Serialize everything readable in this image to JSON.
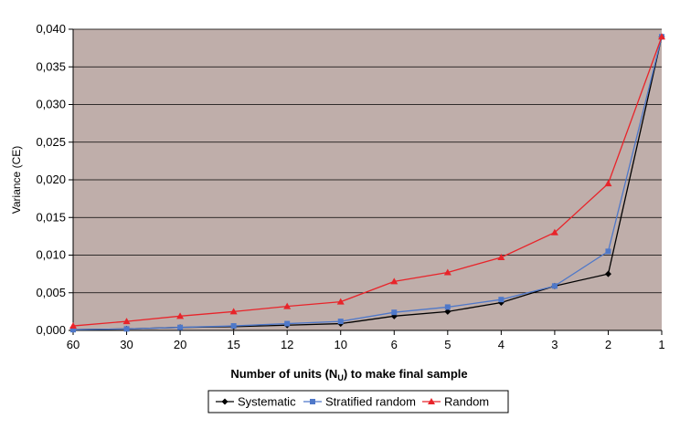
{
  "chart_data": {
    "type": "line",
    "title": "",
    "xlabel": "Number of units (N",
    "xlabel_sub": "U",
    "xlabel_rest": ") to make final sample",
    "ylabel": "Variance (CE)",
    "categories": [
      "60",
      "30",
      "20",
      "15",
      "12",
      "10",
      "6",
      "5",
      "4",
      "3",
      "2",
      "1"
    ],
    "yticks": [
      "0,000",
      "0,005",
      "0,010",
      "0,015",
      "0,020",
      "0,025",
      "0,030",
      "0,035",
      "0,040"
    ],
    "ylim": [
      0,
      0.04
    ],
    "grid": true,
    "legend_position": "bottom",
    "plot_background": "#bfaeaa",
    "series": [
      {
        "name": "Systematic",
        "color": "#000000",
        "marker": "diamond",
        "values": [
          0.0001,
          0.0002,
          0.0004,
          0.0005,
          0.0007,
          0.0009,
          0.0019,
          0.0025,
          0.0037,
          0.0059,
          0.0075,
          0.039
        ]
      },
      {
        "name": "Stratified random",
        "color": "#4f78c9",
        "marker": "square",
        "values": [
          0.0001,
          0.0002,
          0.0004,
          0.0006,
          0.0009,
          0.0012,
          0.0024,
          0.0031,
          0.0041,
          0.0059,
          0.0105,
          0.039
        ]
      },
      {
        "name": "Random",
        "color": "#e8242a",
        "marker": "triangle",
        "values": [
          0.0006,
          0.0012,
          0.0019,
          0.0025,
          0.0032,
          0.0038,
          0.0065,
          0.0077,
          0.0097,
          0.013,
          0.0195,
          0.039
        ]
      }
    ]
  }
}
